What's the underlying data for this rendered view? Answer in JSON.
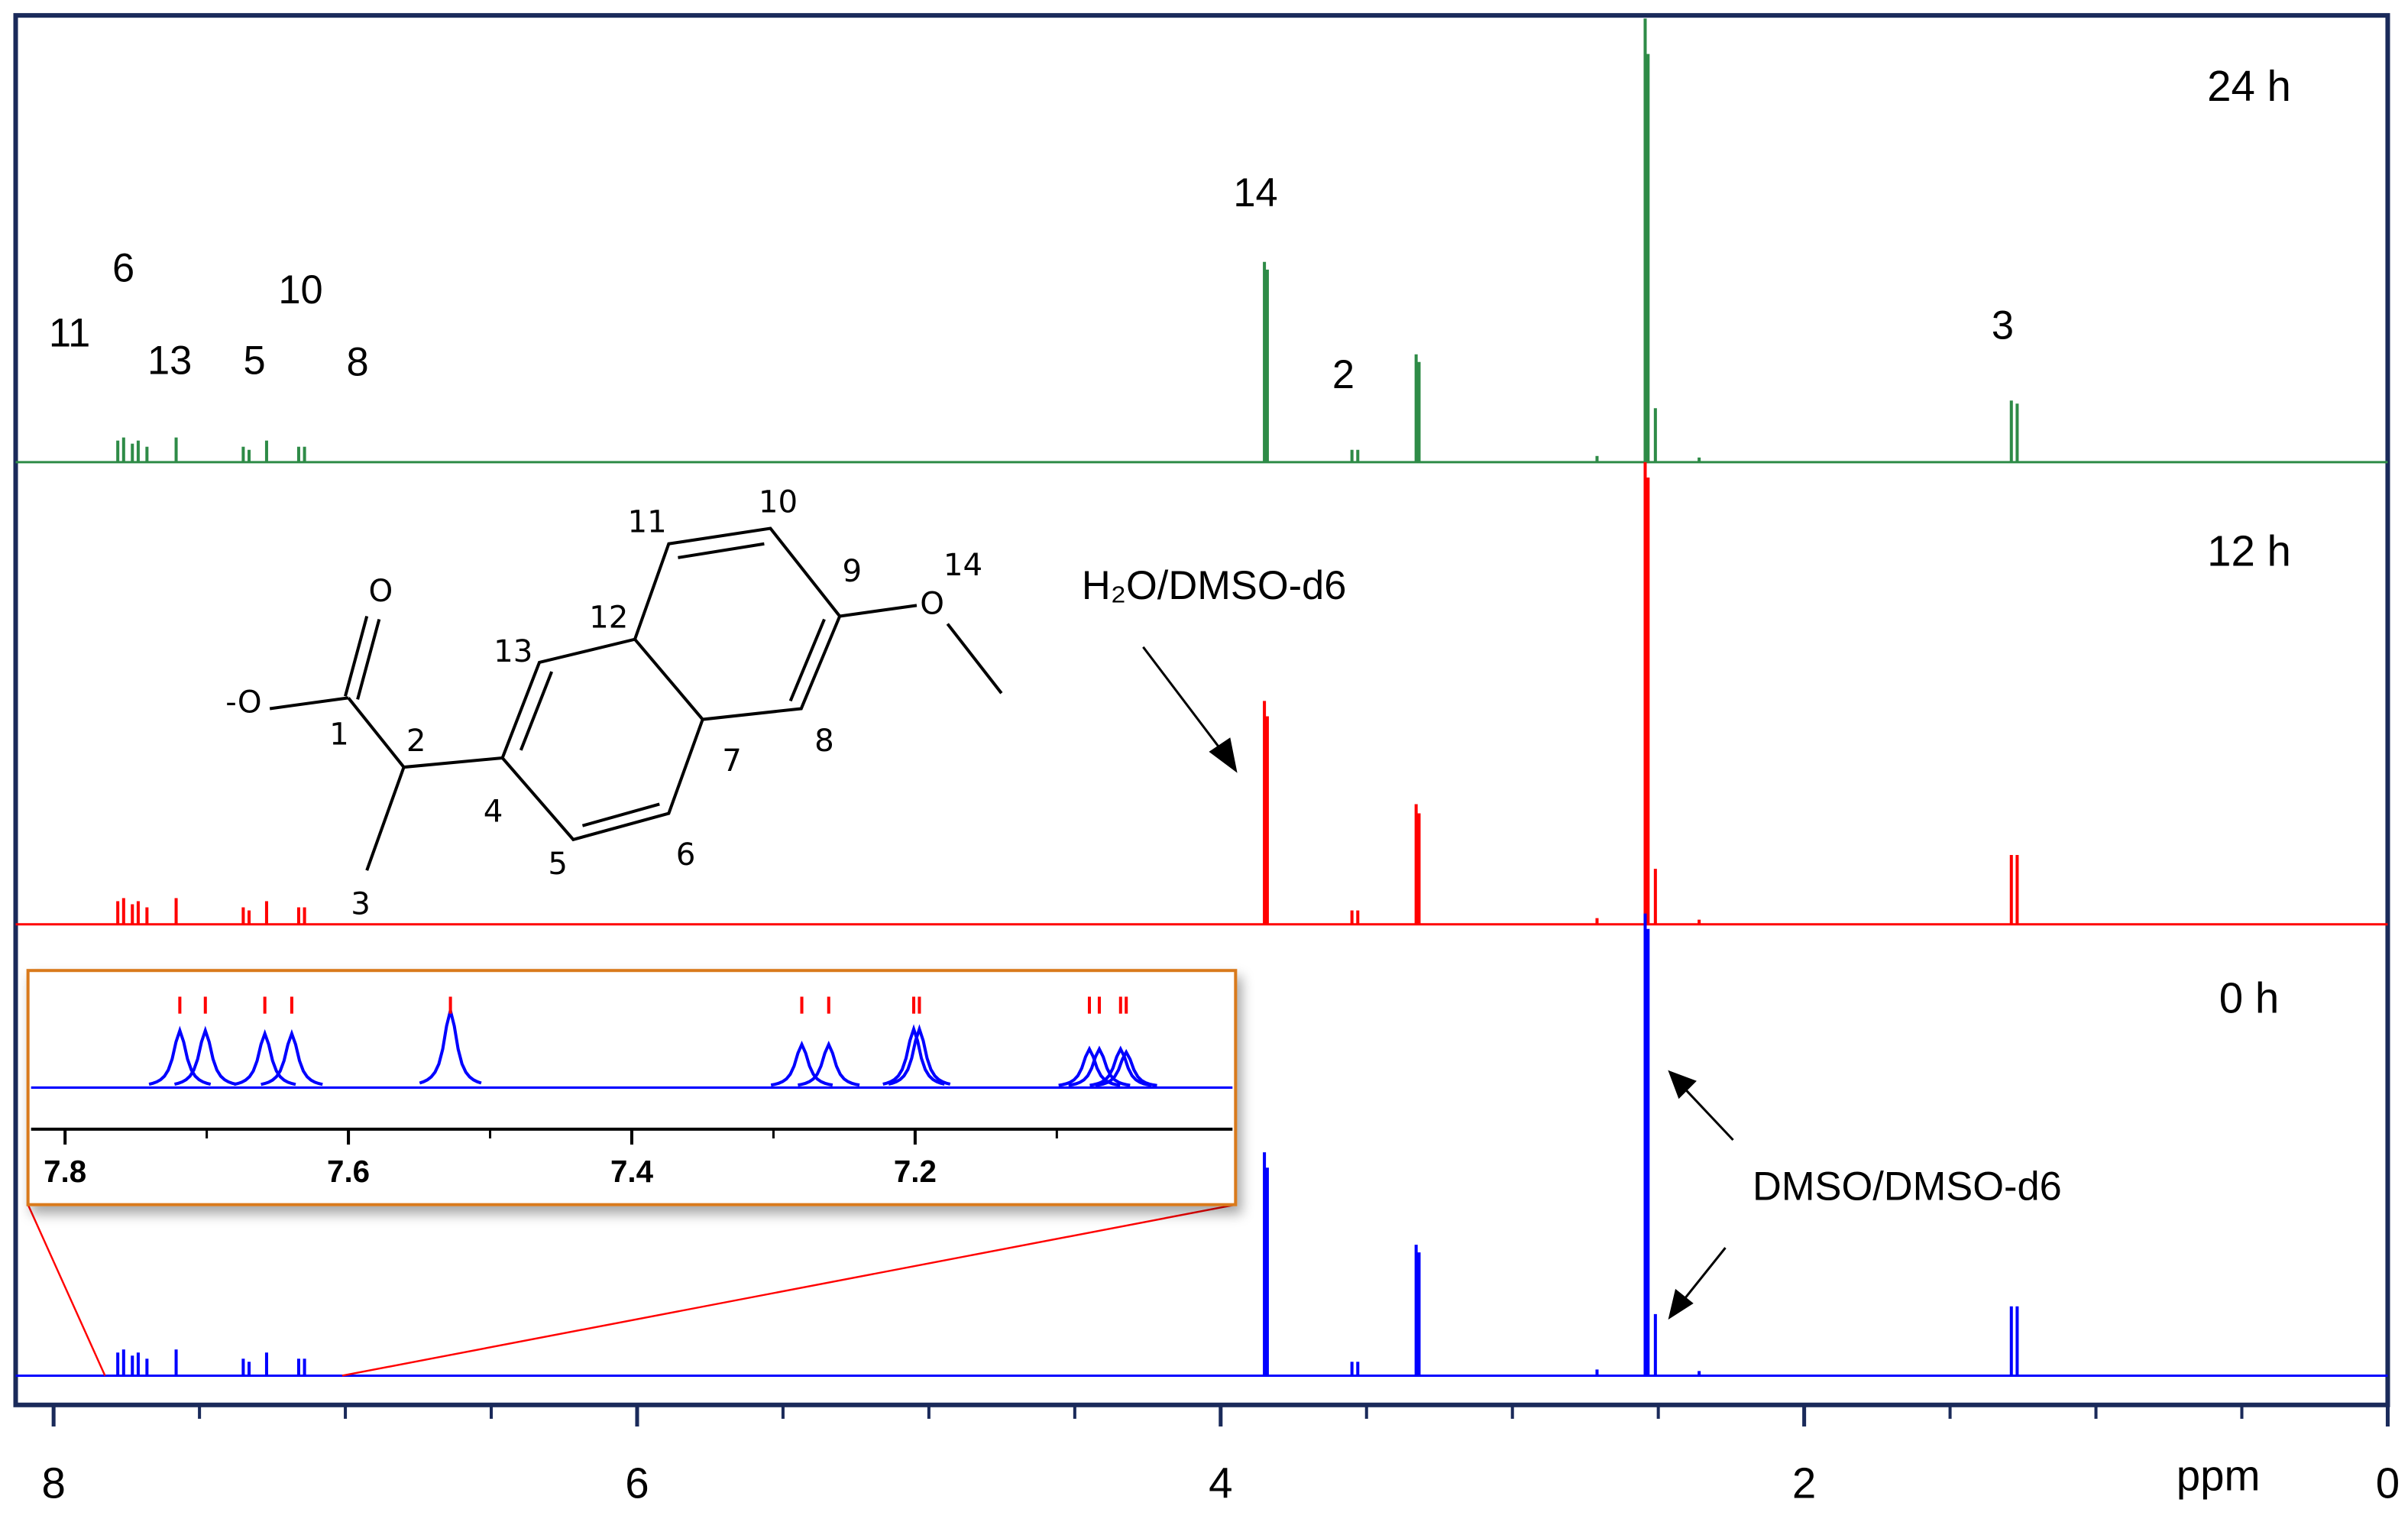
{
  "chart_data": [
    {
      "type": "spectrum",
      "xlabel": "ppm",
      "xlim": [
        8.13,
        0
      ],
      "xticks": [
        8,
        6,
        4,
        2,
        0
      ],
      "xminorticks": [
        7.5,
        7,
        6.5,
        5.5,
        5,
        4.5,
        3.5,
        3,
        2.5,
        1.5,
        1,
        0.5
      ],
      "series": [
        {
          "name": "24 h",
          "color": "#2e8b47",
          "x": [
            7.78,
            7.76,
            7.73,
            7.71,
            7.68,
            7.58,
            7.35,
            7.33,
            7.27,
            7.16,
            7.14,
            3.85,
            3.84,
            3.55,
            3.53,
            3.33,
            3.32,
            2.71,
            2.545,
            2.535,
            2.51,
            2.36,
            1.29,
            1.27
          ],
          "values": [
            14,
            16,
            12,
            14,
            10,
            16,
            10,
            8,
            14,
            10,
            10,
            130,
            125,
            8,
            8,
            70,
            65,
            4,
            288,
            265,
            35,
            3,
            40,
            38
          ]
        },
        {
          "name": "12 h",
          "color": "#ff0000",
          "x": [
            7.78,
            7.76,
            7.73,
            7.71,
            7.68,
            7.58,
            7.35,
            7.33,
            7.27,
            7.16,
            7.14,
            3.85,
            3.84,
            3.55,
            3.53,
            3.33,
            3.32,
            2.71,
            2.545,
            2.535,
            2.51,
            2.36,
            1.29,
            1.27
          ],
          "values": [
            15,
            17,
            13,
            15,
            11,
            17,
            11,
            9,
            15,
            11,
            11,
            145,
            135,
            9,
            9,
            78,
            72,
            4,
            300,
            290,
            36,
            3,
            45,
            45
          ]
        },
        {
          "name": "0 h",
          "color": "#0000ff",
          "x": [
            7.78,
            7.76,
            7.73,
            7.71,
            7.68,
            7.58,
            7.35,
            7.33,
            7.27,
            7.16,
            7.14,
            3.85,
            3.84,
            3.55,
            3.53,
            3.33,
            3.32,
            2.71,
            2.545,
            2.535,
            2.51,
            2.36,
            1.29,
            1.27
          ],
          "values": [
            15,
            17,
            13,
            15,
            11,
            17,
            11,
            9,
            15,
            11,
            11,
            145,
            135,
            9,
            9,
            85,
            80,
            4,
            300,
            290,
            40,
            3,
            45,
            45
          ]
        }
      ],
      "annotations": [
        "11",
        "6",
        "13",
        "5",
        "10",
        "8",
        "14",
        "2",
        "3",
        "H₂O/DMSO-d6",
        "DMSO/DMSO-d6"
      ]
    },
    {
      "type": "inset",
      "xlim": [
        7.824,
        6.976
      ],
      "xticks": [
        7.8,
        7.6,
        7.4,
        7.2
      ],
      "xminorticks": [
        7.7,
        7.5,
        7.3,
        7.1
      ],
      "marker_color": "#ff0000",
      "series": [
        {
          "color": "#0000ff",
          "x": [
            7.719,
            7.701,
            7.659,
            7.64,
            7.528,
            7.28,
            7.261,
            7.201,
            7.197,
            7.077,
            7.07,
            7.055,
            7.051
          ],
          "values": [
            37,
            37,
            35,
            35,
            50,
            28,
            28,
            38,
            38,
            25,
            25,
            25,
            23
          ]
        }
      ]
    }
  ],
  "structure": {
    "labels": [
      "O",
      "-O",
      "O",
      "1",
      "2",
      "3",
      "4",
      "5",
      "6",
      "7",
      "8",
      "9",
      "10",
      "11",
      "12",
      "13",
      "14"
    ]
  }
}
